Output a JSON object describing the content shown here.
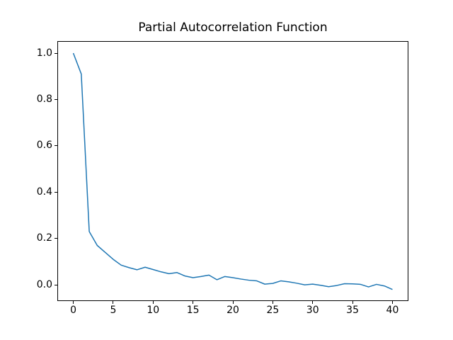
{
  "figure": {
    "background": "#ffffff"
  },
  "chart_data": {
    "type": "line",
    "title": "Partial Autocorrelation Function",
    "xlabel": "",
    "ylabel": "",
    "x": [
      0,
      1,
      2,
      3,
      4,
      5,
      6,
      7,
      8,
      9,
      10,
      11,
      12,
      13,
      14,
      15,
      16,
      17,
      18,
      19,
      20,
      21,
      22,
      23,
      24,
      25,
      26,
      27,
      28,
      29,
      30,
      31,
      32,
      33,
      34,
      35,
      36,
      37,
      38,
      39,
      40
    ],
    "series": [
      {
        "name": "pacf",
        "color": "#1f77b4",
        "values": [
          1.0,
          0.91,
          0.23,
          0.17,
          0.14,
          0.11,
          0.085,
          0.074,
          0.065,
          0.076,
          0.066,
          0.056,
          0.048,
          0.053,
          0.038,
          0.031,
          0.036,
          0.042,
          0.022,
          0.036,
          0.031,
          0.025,
          0.02,
          0.017,
          0.003,
          0.006,
          0.017,
          0.013,
          0.007,
          0.0,
          0.003,
          -0.002,
          -0.008,
          -0.003,
          0.005,
          0.004,
          0.002,
          -0.009,
          0.002,
          -0.005,
          -0.02
        ]
      }
    ],
    "xlim": [
      -2,
      42
    ],
    "ylim": [
      -0.07,
      1.052
    ],
    "xticks": [
      0,
      5,
      10,
      15,
      20,
      25,
      30,
      35,
      40
    ],
    "xtick_labels": [
      "0",
      "5",
      "10",
      "15",
      "20",
      "25",
      "30",
      "35",
      "40"
    ],
    "yticks": [
      0.0,
      0.2,
      0.4,
      0.6,
      0.8,
      1.0
    ],
    "ytick_labels": [
      "0.0",
      "0.2",
      "0.4",
      "0.6",
      "0.8",
      "1.0"
    ],
    "grid": false,
    "legend": "none",
    "line_width": 1.5,
    "axis_color": "#000000",
    "text_color": "#000000"
  }
}
